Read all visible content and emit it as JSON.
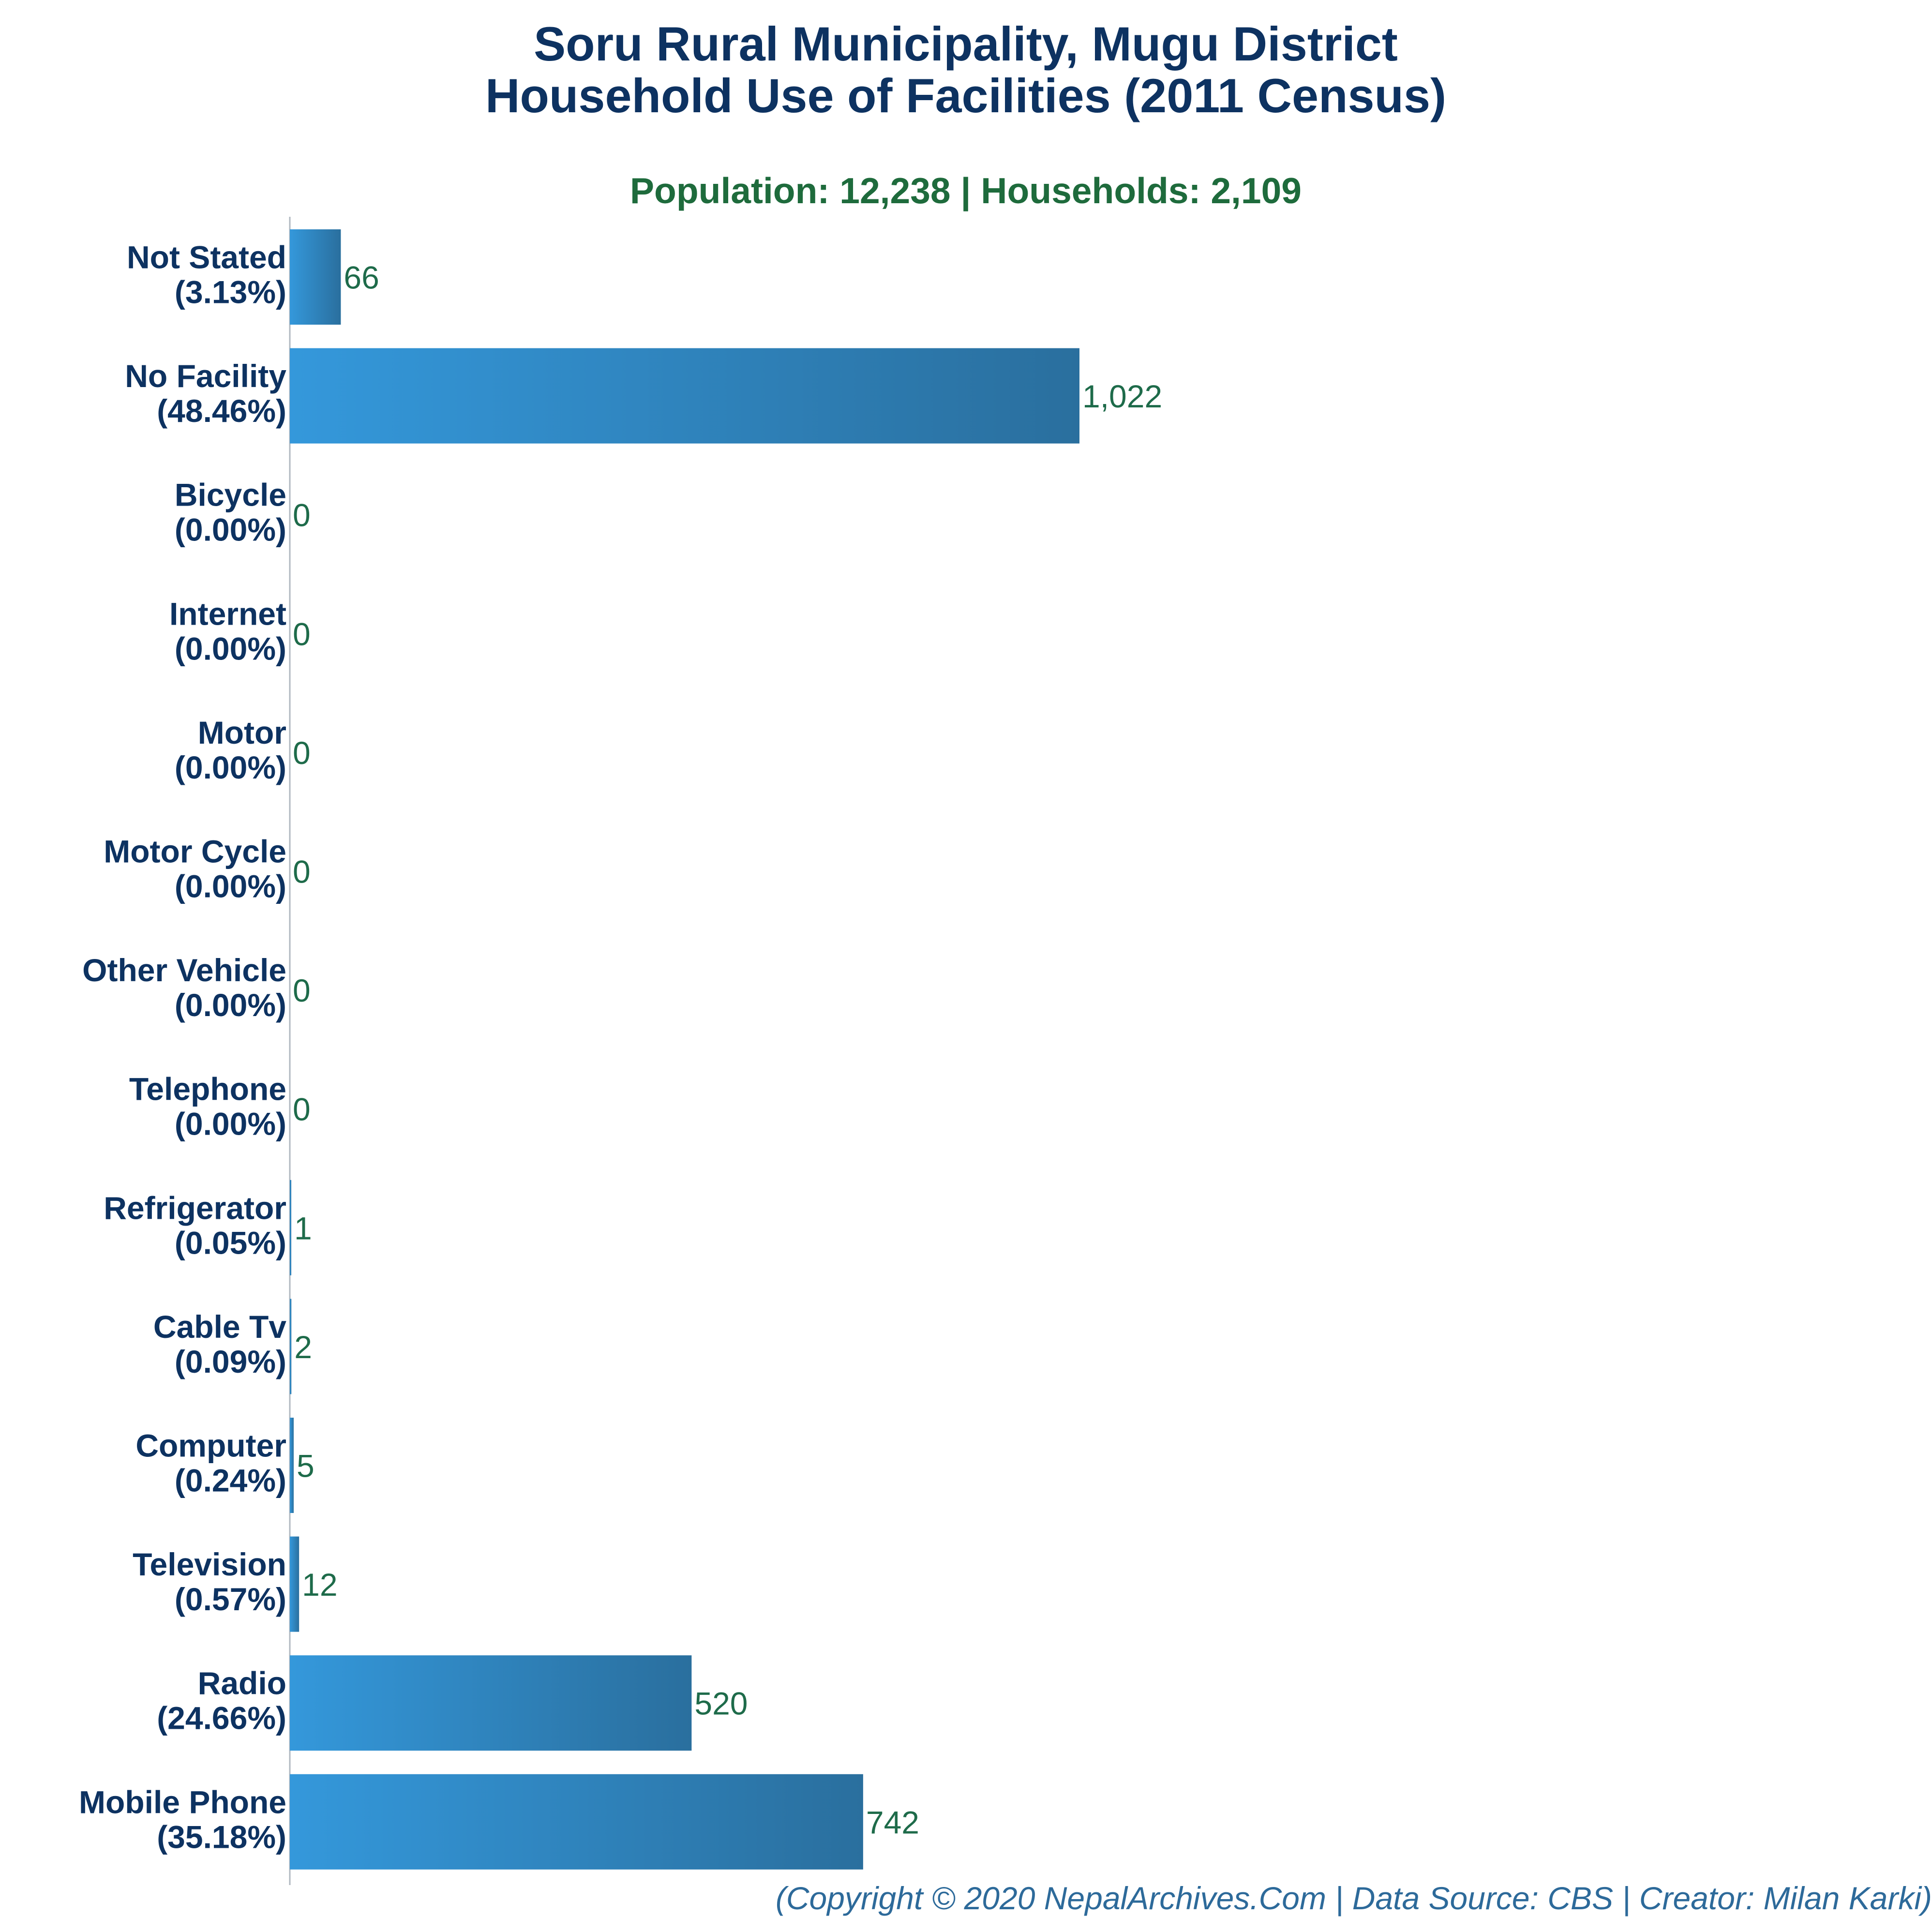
{
  "colors": {
    "title": "#0d3261",
    "subtitle": "#1e6b3c",
    "category_label": "#0d3261",
    "value_label": "#1e6b4a",
    "bar_gradient_start": "#3498db",
    "bar_gradient_end": "#2a6f9e",
    "axis": "#b0b8c0",
    "footer": "#2d6a9a"
  },
  "chart_data": {
    "type": "bar",
    "orientation": "horizontal",
    "title": "Soru Rural Municipality, Mugu District",
    "title_line2": "Household Use of Facilities (2011 Census)",
    "subtitle": "Population: 12,238 | Households: 2,109",
    "categories": [
      "Not Stated",
      "No Facility",
      "Bicycle",
      "Internet",
      "Motor",
      "Motor Cycle",
      "Other Vehicle",
      "Telephone",
      "Refrigerator",
      "Cable Tv",
      "Computer",
      "Television",
      "Radio",
      "Mobile Phone"
    ],
    "percent_labels": [
      "(3.13%)",
      "(48.46%)",
      "(0.00%)",
      "(0.00%)",
      "(0.00%)",
      "(0.00%)",
      "(0.00%)",
      "(0.00%)",
      "(0.05%)",
      "(0.09%)",
      "(0.24%)",
      "(0.57%)",
      "(24.66%)",
      "(35.18%)"
    ],
    "values": [
      66,
      1022,
      0,
      0,
      0,
      0,
      0,
      0,
      1,
      2,
      5,
      12,
      520,
      742
    ],
    "value_labels": [
      "66",
      "1,022",
      "0",
      "0",
      "0",
      "0",
      "0",
      "0",
      "1",
      "2",
      "5",
      "12",
      "520",
      "742"
    ],
    "xlim": [
      0,
      1022
    ],
    "grid": false,
    "xlabel": "",
    "ylabel": ""
  },
  "footer": "(Copyright © 2020 NepalArchives.Com | Data Source: CBS | Creator: Milan Karki)"
}
